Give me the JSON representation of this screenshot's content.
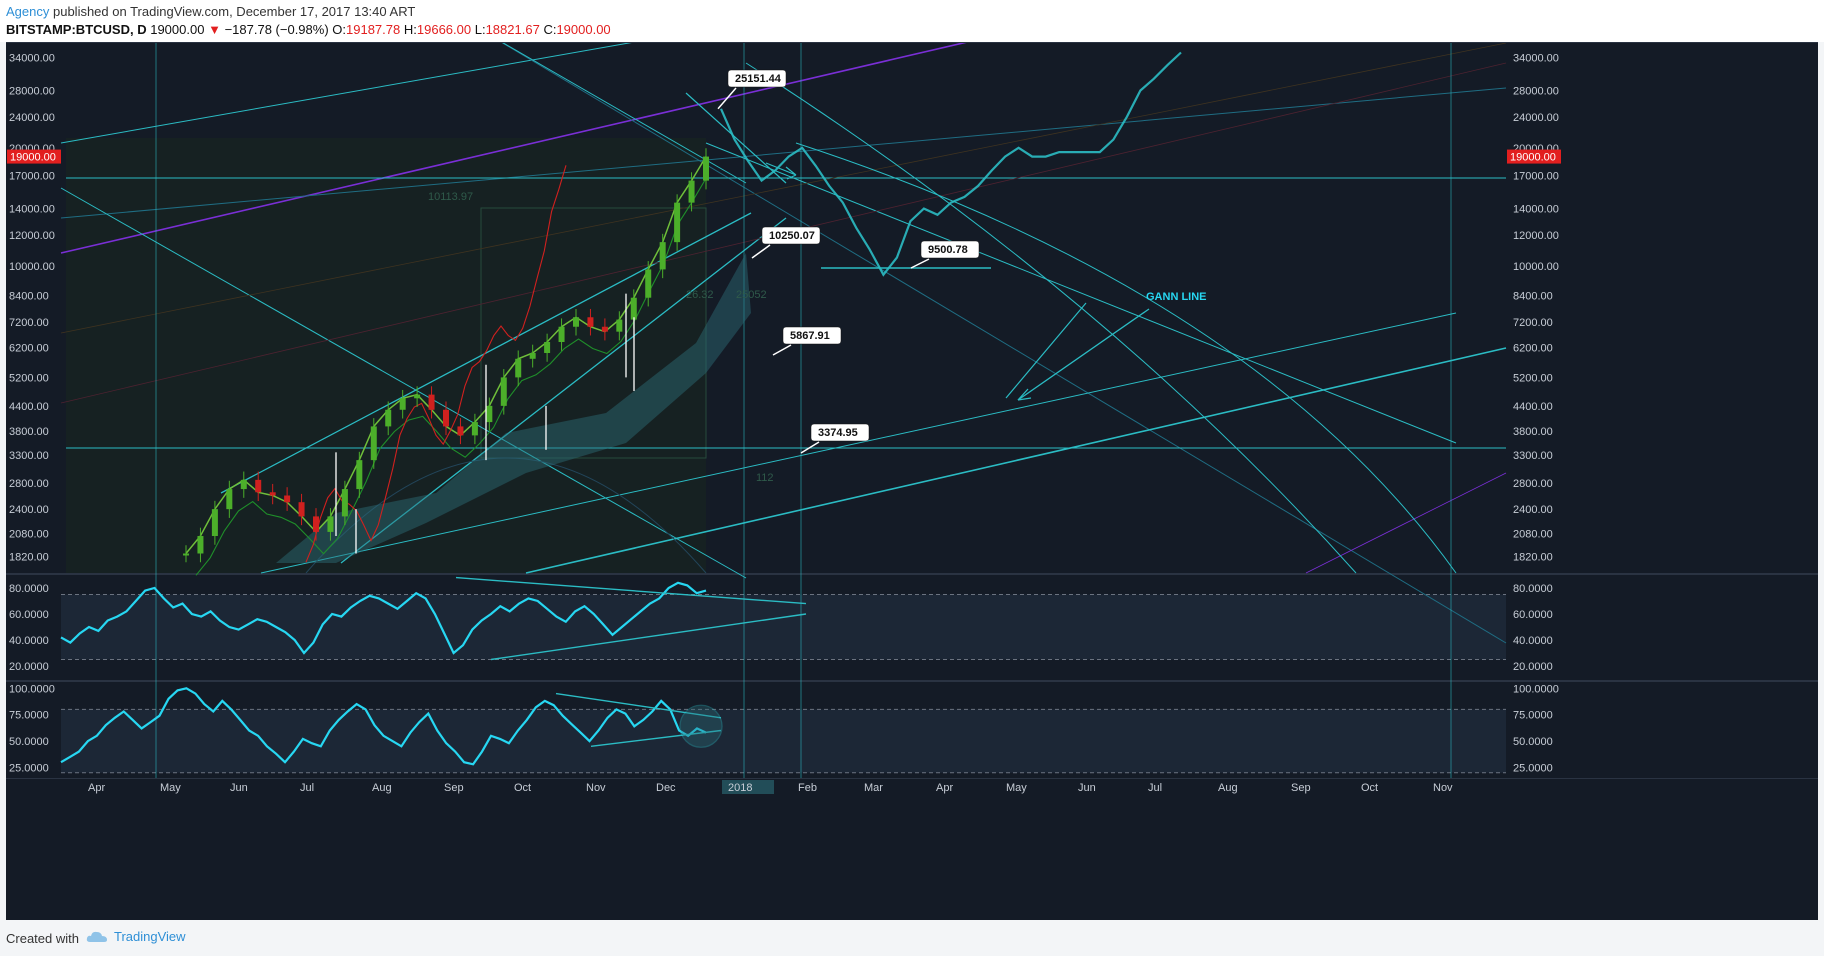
{
  "header": {
    "agency": "Agency",
    "published_text": " published on TradingView.com, December 17, 2017 13:40 ART",
    "symbol": "BITSTAMP:BTCUSD, D",
    "price": "19000.00",
    "change_arrow": "▼",
    "change": "−187.78 (−0.98%)",
    "o_label": "O:",
    "o_value": "19187.78",
    "h_label": "H:",
    "h_value": "19666.00",
    "l_label": "L:",
    "l_value": "18821.67",
    "c_label": "C:",
    "c_value": "19000.00"
  },
  "footer": {
    "created": "Created with",
    "brand": "TradingView"
  },
  "colors": {
    "background": "#141b26",
    "lines": "#2bbcc4",
    "rsi": "#27d7f2",
    "purple": "#7a2fd6",
    "up": "#4caf2a",
    "down": "#d0211f",
    "price_tag": "#e21f1f"
  },
  "chart_data": [
    {
      "type": "line",
      "panel": "price",
      "scale": "log",
      "ylim": [
        1650,
        37000
      ],
      "y_ticks": [
        34000,
        28000,
        24000,
        20000,
        17000,
        14000,
        12000,
        10000,
        8400,
        7200,
        6200,
        5200,
        4400,
        3800,
        3300,
        2800,
        2400,
        2080,
        1820
      ],
      "y_tick_labels": [
        "34000.00",
        "28000.00",
        "24000.00",
        "20000.00",
        "17000.00",
        "14000.00",
        "12000.00",
        "10000.00",
        "8400.00",
        "7200.00",
        "6200.00",
        "5200.00",
        "4400.00",
        "3800.00",
        "3300.00",
        "2800.00",
        "2400.00",
        "2080.00",
        "1820.00"
      ],
      "last_price": 19000,
      "last_price_label": "19000.00",
      "x_ticks": [
        "Apr",
        "May",
        "Jun",
        "Jul",
        "Aug",
        "Sep",
        "Oct",
        "Nov",
        "Dec",
        "2018",
        "Feb",
        "Mar",
        "Apr",
        "May",
        "Jun",
        "Jul",
        "Aug",
        "Sep",
        "Oct",
        "Nov"
      ],
      "series": [
        {
          "values": [
            1850,
            2050,
            2400,
            2700,
            2850,
            2650,
            2600,
            2500,
            2300,
            2100,
            2300,
            2700,
            3200,
            3900,
            4300,
            4600,
            4700,
            4300,
            3900,
            3700,
            4000,
            4400,
            5200,
            5800,
            6000,
            6400,
            7000,
            7400,
            7000,
            6800,
            7300,
            8300,
            9800,
            11500,
            14500,
            16500,
            19000
          ]
        },
        {
          "values": [
            25151,
            21000,
            18500,
            16500,
            17500,
            19000,
            20000,
            18000,
            16000,
            14500,
            12500,
            11000,
            9500,
            10500,
            13000,
            14000,
            13500,
            14500,
            15000,
            16000,
            17500,
            19000,
            20000,
            19000,
            19000,
            19500,
            19500,
            19500,
            19500,
            21000,
            24000,
            28000,
            30000,
            32500,
            35000
          ]
        }
      ],
      "annotations": [
        {
          "text": "25151.44",
          "value": 25151.44
        },
        {
          "text": "10250.07",
          "value": 10250.07
        },
        {
          "text": "9500.78",
          "value": 9500.78
        },
        {
          "text": "5867.91",
          "value": 5867.91
        },
        {
          "text": "3374.95",
          "value": 3374.95
        },
        {
          "text": "GANN LINE"
        }
      ],
      "watermark_labels": [
        "10113.97",
        "26.32",
        "25052",
        "112"
      ]
    },
    {
      "type": "line",
      "panel": "rsi",
      "ylim": [
        10,
        90
      ],
      "y_ticks": [
        80,
        60,
        40,
        20
      ],
      "y_tick_labels": [
        "80.0000",
        "60.0000",
        "40.0000",
        "20.0000"
      ],
      "bands": [
        75,
        25
      ],
      "series": [
        {
          "values": [
            42,
            38,
            45,
            50,
            47,
            55,
            58,
            62,
            70,
            78,
            80,
            72,
            65,
            68,
            60,
            58,
            62,
            55,
            50,
            48,
            52,
            56,
            54,
            50,
            46,
            40,
            30,
            38,
            52,
            60,
            58,
            65,
            70,
            74,
            72,
            68,
            64,
            70,
            76,
            72,
            60,
            45,
            30,
            36,
            48,
            55,
            60,
            66,
            62,
            68,
            72,
            70,
            64,
            58,
            54,
            62,
            66,
            60,
            52,
            44,
            50,
            56,
            62,
            68,
            72,
            80,
            84,
            82,
            76,
            78
          ]
        }
      ]
    },
    {
      "type": "line",
      "panel": "stoch",
      "ylim": [
        15,
        105
      ],
      "y_ticks": [
        100,
        75,
        50,
        25
      ],
      "y_tick_labels": [
        "100.0000",
        "75.0000",
        "50.0000",
        "25.0000"
      ],
      "bands": [
        80,
        20
      ],
      "series": [
        {
          "values": [
            30,
            35,
            40,
            50,
            55,
            65,
            72,
            78,
            70,
            62,
            68,
            74,
            90,
            98,
            100,
            95,
            85,
            78,
            88,
            80,
            70,
            60,
            55,
            45,
            38,
            30,
            40,
            52,
            48,
            45,
            60,
            70,
            78,
            85,
            80,
            65,
            55,
            50,
            45,
            58,
            68,
            76,
            60,
            48,
            40,
            30,
            28,
            40,
            55,
            52,
            48,
            60,
            70,
            82,
            88,
            84,
            74,
            66,
            58,
            50,
            60,
            72,
            80,
            76,
            64,
            70,
            78,
            88,
            80,
            60,
            55,
            62,
            58
          ]
        }
      ]
    }
  ]
}
